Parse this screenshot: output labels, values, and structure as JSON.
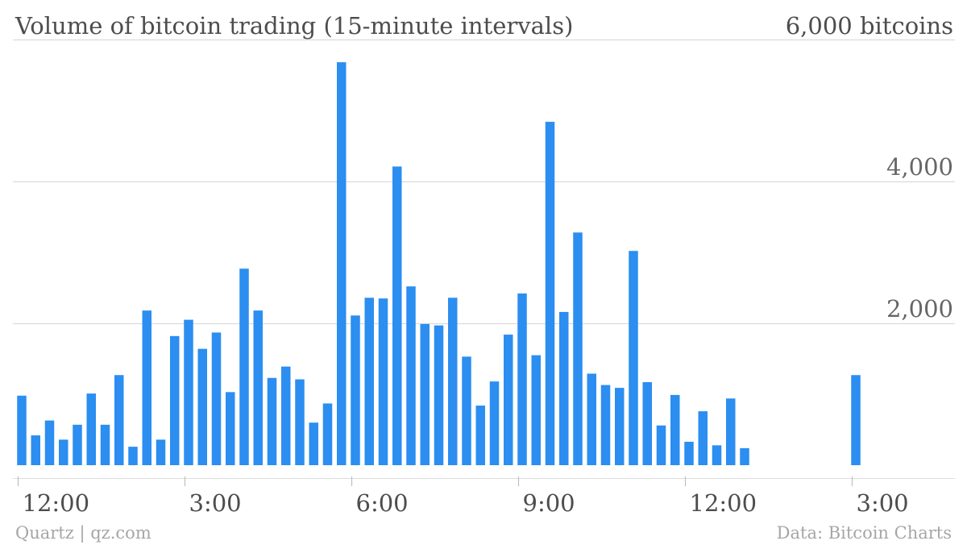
{
  "chart_data": {
    "type": "bar",
    "title": "Volume of bitcoin trading (15-minute intervals)",
    "y_unit_label": "6,000 bitcoins",
    "xlabel": "",
    "ylabel": "",
    "ylim": [
      0,
      6000
    ],
    "yticks": [
      {
        "value": 2000,
        "label": "2,000"
      },
      {
        "value": 4000,
        "label": "4,000"
      }
    ],
    "xlim": [
      -0.5,
      60.5
    ],
    "xticks": [
      {
        "index": 0,
        "label": "12:00"
      },
      {
        "index": 12,
        "label": "3:00"
      },
      {
        "index": 24,
        "label": "6:00"
      },
      {
        "index": 36,
        "label": "9:00"
      },
      {
        "index": 48,
        "label": "12:00"
      },
      {
        "index": 60,
        "label": "3:00"
      }
    ],
    "grid": "horizontal",
    "bar_color": "#2b8ef0",
    "values": [
      980,
      420,
      630,
      360,
      570,
      1010,
      570,
      1270,
      260,
      2180,
      360,
      1820,
      2050,
      1640,
      1870,
      1030,
      2770,
      2180,
      1230,
      1390,
      1210,
      600,
      870,
      5680,
      2110,
      2360,
      2350,
      4210,
      2520,
      1990,
      1970,
      2360,
      1530,
      840,
      1180,
      1840,
      2420,
      1550,
      4840,
      2160,
      3280,
      1290,
      1130,
      1090,
      3020,
      1170,
      560,
      990,
      330,
      760,
      280,
      940,
      240,
      null,
      null,
      null,
      null,
      null,
      null,
      null,
      1270
    ]
  },
  "footer": {
    "source_left": "Quartz | qz.com",
    "source_right": "Data: Bitcoin Charts"
  }
}
